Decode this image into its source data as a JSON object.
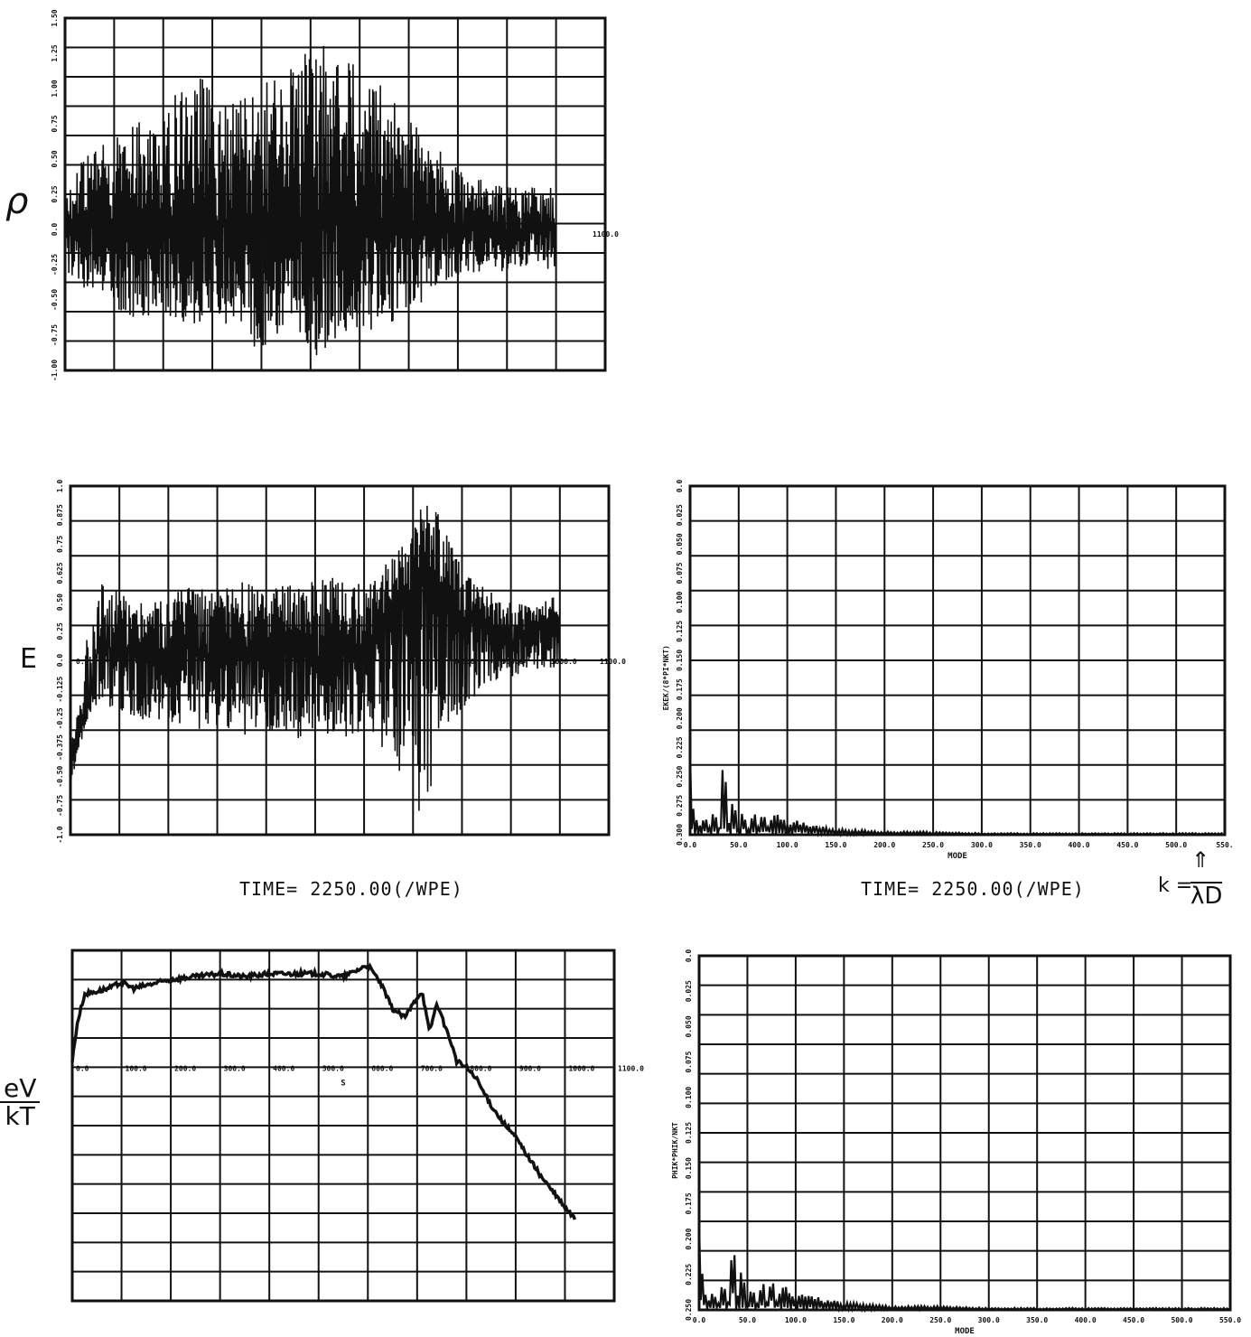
{
  "annotations": {
    "rho_label": "ρ",
    "e_label": "E",
    "ev_num": "eV",
    "ev_den": "kT",
    "k_label": "k =",
    "k_den": "λD",
    "k_arrow": "⇑"
  },
  "captions": {
    "left_time": "TIME= 2250.00(/WPE)",
    "right_time": "TIME= 2250.00(/WPE)"
  },
  "chart_data": [
    {
      "id": "rho",
      "type": "line",
      "title": "",
      "xlabel": "",
      "ylabel": "ρ",
      "xlim": [
        0,
        1100
      ],
      "ylim": [
        -1.0,
        1.5
      ],
      "x_tick_labels_printed": [
        "0.0",
        "1100.0"
      ],
      "y_tick_labels": [
        "1.50",
        "1.25",
        "1.00",
        "0.75",
        "0.50",
        "0.25",
        "0.0",
        "-0.25",
        "-0.50",
        "-0.75",
        "-1.00"
      ],
      "grid": true,
      "series": [
        {
          "x": [
            0,
            50,
            100,
            150,
            200,
            250,
            300,
            350,
            400,
            450,
            500,
            550,
            600,
            650,
            700,
            750,
            800,
            850,
            900,
            950,
            1000
          ],
          "y_max": [
            0.35,
            0.55,
            0.65,
            0.8,
            0.75,
            1.2,
            1.0,
            0.9,
            1.05,
            1.1,
            1.35,
            1.3,
            1.15,
            1.0,
            0.85,
            0.6,
            0.45,
            0.35,
            0.3,
            0.3,
            0.3
          ],
          "y_min": [
            -0.3,
            -0.45,
            -0.55,
            -0.65,
            -0.6,
            -0.7,
            -0.65,
            -0.7,
            -0.9,
            -0.75,
            -0.95,
            -0.8,
            -0.75,
            -0.7,
            -0.6,
            -0.45,
            -0.35,
            -0.3,
            -0.3,
            -0.25,
            -0.3
          ]
        }
      ]
    },
    {
      "id": "E",
      "type": "line",
      "title": "",
      "xlabel": "",
      "ylabel": "E",
      "xlim": [
        0,
        1100
      ],
      "ylim": [
        -1.0,
        1.0
      ],
      "x_tick_labels": [
        "0.0",
        "800.0",
        "900.0",
        "1000.0",
        "1100.0"
      ],
      "y_tick_labels": [
        "1.0",
        "0.875",
        "0.75",
        "0.625",
        "0.50",
        "0.25",
        "0.0",
        "-0.125",
        "-0.25",
        "-0.375",
        "-0.50",
        "-0.75",
        "-1.0"
      ],
      "grid": true,
      "series": [
        {
          "x": [
            0,
            20,
            40,
            60,
            100,
            150,
            200,
            250,
            300,
            350,
            400,
            450,
            500,
            550,
            600,
            650,
            700,
            725,
            750,
            775,
            800,
            850,
            900,
            950,
            1000
          ],
          "y": [
            -0.65,
            -0.35,
            -0.2,
            0.1,
            0.05,
            0.05,
            0.0,
            0.1,
            -0.05,
            0.05,
            0.05,
            0.1,
            0.0,
            0.05,
            0.05,
            0.3,
            0.4,
            0.55,
            0.3,
            0.35,
            0.25,
            0.2,
            0.1,
            0.2,
            0.15
          ],
          "y_max": [
            -0.5,
            -0.2,
            0.3,
            0.45,
            0.4,
            0.35,
            0.4,
            0.45,
            0.4,
            0.45,
            0.4,
            0.45,
            0.45,
            0.5,
            0.45,
            0.6,
            0.75,
            0.95,
            0.85,
            0.7,
            0.55,
            0.4,
            0.35,
            0.3,
            0.4
          ],
          "y_min": [
            -0.75,
            -0.5,
            -0.3,
            -0.25,
            -0.3,
            -0.35,
            -0.35,
            -0.4,
            -0.4,
            -0.45,
            -0.4,
            -0.5,
            -0.4,
            -0.45,
            -0.4,
            -0.55,
            -0.85,
            -0.9,
            -0.6,
            -0.35,
            -0.3,
            -0.15,
            -0.1,
            -0.05,
            -0.05
          ]
        }
      ]
    },
    {
      "id": "phi",
      "type": "line",
      "title": "",
      "xlabel": "S",
      "ylabel": "eV/kT",
      "xlim": [
        0,
        1100
      ],
      "ylim": [
        -4.0,
        2.0
      ],
      "x_tick_labels": [
        "0.0",
        "100.0",
        "200.0",
        "300.0",
        "400.0",
        "500.0",
        "600.0",
        "700.0",
        "800.0",
        "900.0",
        "1000.0",
        "1100.0"
      ],
      "grid": true,
      "series": [
        {
          "x": [
            0,
            10,
            25,
            50,
            75,
            100,
            125,
            150,
            175,
            200,
            250,
            300,
            350,
            400,
            450,
            500,
            550,
            600,
            625,
            650,
            675,
            700,
            710,
            725,
            740,
            750,
            770,
            780,
            800,
            820,
            850,
            875,
            900,
            950,
            1000,
            1020
          ],
          "y": [
            0.1,
            0.75,
            1.25,
            1.3,
            1.35,
            1.45,
            1.35,
            1.4,
            1.45,
            1.5,
            1.55,
            1.6,
            1.55,
            1.6,
            1.6,
            1.6,
            1.55,
            1.75,
            1.45,
            1.0,
            0.85,
            1.2,
            1.3,
            0.6,
            1.1,
            0.85,
            0.4,
            0.1,
            0.0,
            -0.2,
            -0.65,
            -0.95,
            -1.2,
            -1.85,
            -2.4,
            -2.6
          ]
        }
      ]
    },
    {
      "id": "spectrum_E",
      "type": "line",
      "title": "",
      "xlabel": "MODE",
      "ylabel": "EKEK/(8*PI*NKT)",
      "xlim": [
        0,
        550
      ],
      "ylim": [
        0,
        0.3
      ],
      "x_tick_labels": [
        "0.0",
        "50.0",
        "100.0",
        "150.0",
        "200.0",
        "250.0",
        "300.0",
        "350.0",
        "400.0",
        "450.0",
        "500.0",
        "550."
      ],
      "y_tick_labels": [
        "0.0",
        "0.025",
        "0.050",
        "0.075",
        "0.100",
        "0.125",
        "0.150",
        "0.175",
        "0.200",
        "0.225",
        "0.250",
        "0.275",
        "0.300"
      ],
      "grid": true,
      "series": [
        {
          "x": [
            0,
            3,
            8,
            15,
            20,
            25,
            30,
            35,
            40,
            45,
            50,
            55,
            60,
            65,
            70,
            75,
            80,
            90,
            100,
            110,
            125,
            150,
            175,
            200,
            250,
            300,
            400,
            500,
            550
          ],
          "y": [
            0.065,
            0.02,
            0.005,
            0.012,
            0.005,
            0.02,
            0.005,
            0.06,
            0.01,
            0.025,
            0.005,
            0.018,
            0.004,
            0.02,
            0.005,
            0.022,
            0.006,
            0.015,
            0.008,
            0.01,
            0.006,
            0.004,
            0.003,
            0.002,
            0.002,
            0.001,
            0.001,
            0.001,
            0.001
          ]
        }
      ]
    },
    {
      "id": "spectrum_phi",
      "type": "line",
      "title": "",
      "xlabel": "MODE",
      "ylabel": "PHIK*PHIK/NKT",
      "xlim": [
        0,
        550
      ],
      "ylim": [
        0,
        0.25
      ],
      "x_tick_labels": [
        "0.0",
        "50.0",
        "100.0",
        "150.0",
        "200.0",
        "250.0",
        "300.0",
        "350.0",
        "400.0",
        "450.0",
        "500.0",
        "550.0"
      ],
      "y_tick_labels": [
        "0.0",
        "0.025",
        "0.050",
        "0.075",
        "0.100",
        "0.125",
        "0.150",
        "0.175",
        "0.200",
        "0.225",
        "0.250"
      ],
      "grid": true,
      "series": [
        {
          "x": [
            0,
            3,
            8,
            15,
            20,
            25,
            30,
            35,
            40,
            45,
            50,
            55,
            60,
            65,
            70,
            75,
            80,
            90,
            100,
            110,
            125,
            150,
            175,
            200,
            250,
            300,
            400,
            500,
            550
          ],
          "y": [
            0.065,
            0.02,
            0.005,
            0.012,
            0.005,
            0.02,
            0.005,
            0.055,
            0.01,
            0.025,
            0.005,
            0.018,
            0.004,
            0.02,
            0.005,
            0.022,
            0.006,
            0.015,
            0.008,
            0.01,
            0.006,
            0.004,
            0.003,
            0.002,
            0.002,
            0.001,
            0.001,
            0.001,
            0.001
          ]
        }
      ]
    }
  ]
}
